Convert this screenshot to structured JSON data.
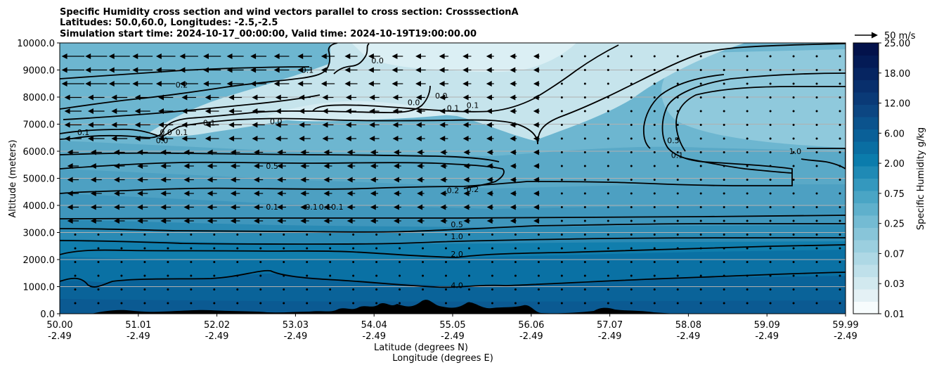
{
  "chart_data": {
    "type": "contour",
    "title_lines": [
      "Specific Humidity cross section and wind vectors parallel to cross section: CrosssectionA",
      "Latitudes: 50.0,60.0, Longitudes: -2.5,-2.5",
      "Simulation start time: 2024-10-17_00:00:00, Valid time: 2024-10-19T19:00:00.00"
    ],
    "ylabel": "Altitude (meters)",
    "xlabel_lines": [
      "Latitude (degrees N)",
      "Longitude (degrees E)"
    ],
    "ylim": [
      0,
      10000
    ],
    "yticks": [
      "0.0",
      "1000.0",
      "2000.0",
      "3000.0",
      "4000.0",
      "5000.0",
      "6000.0",
      "7000.0",
      "8000.0",
      "9000.0",
      "10000.0"
    ],
    "xticks": [
      {
        "lat": "50.00",
        "lon": "-2.49"
      },
      {
        "lat": "51.01",
        "lon": "-2.49"
      },
      {
        "lat": "52.02",
        "lon": "-2.49"
      },
      {
        "lat": "53.03",
        "lon": "-2.49"
      },
      {
        "lat": "54.04",
        "lon": "-2.49"
      },
      {
        "lat": "55.05",
        "lon": "-2.49"
      },
      {
        "lat": "56.06",
        "lon": "-2.49"
      },
      {
        "lat": "57.07",
        "lon": "-2.49"
      },
      {
        "lat": "58.08",
        "lon": "-2.49"
      },
      {
        "lat": "59.09",
        "lon": "-2.49"
      },
      {
        "lat": "59.99",
        "lon": "-2.49"
      }
    ],
    "grid": "horizontal",
    "colorbar": {
      "label": "Specific Humidity g/kg",
      "tick_labels": [
        "0.01",
        "0.03",
        "0.07",
        "0.25",
        "0.75",
        "2.00",
        "6.00",
        "12.00",
        "18.00",
        "25.00"
      ],
      "colors": [
        "#f7fcfd",
        "#e4f1f5",
        "#d2e9ef",
        "#bfe0ea",
        "#aed8e5",
        "#9bcfdf",
        "#88c5d9",
        "#74bbd3",
        "#5fb0cc",
        "#4aa5c5",
        "#3498be",
        "#1f8ab5",
        "#0b7cac",
        "#0a6ea2",
        "#0a6098",
        "#0b538d",
        "#0c4682",
        "#0a3a77",
        "#082f6c",
        "#062561",
        "#041b56",
        "#03124b"
      ]
    },
    "quiver_key": "50 m/s",
    "contour_labels": [
      {
        "text": "0.0",
        "lat": 54.04,
        "alt": 9250
      },
      {
        "text": "0.1",
        "lat": 53.15,
        "alt": 8900
      },
      {
        "text": "0.2",
        "lat": 51.55,
        "alt": 8350
      },
      {
        "text": "0.0",
        "lat": 54.85,
        "alt": 7950
      },
      {
        "text": "0.0",
        "lat": 54.5,
        "alt": 7700
      },
      {
        "text": "0.1",
        "lat": 55.0,
        "alt": 7500
      },
      {
        "text": "0.1",
        "lat": 55.25,
        "alt": 7600
      },
      {
        "text": "0.0",
        "lat": 52.75,
        "alt": 7000
      },
      {
        "text": "0.1",
        "lat": 51.9,
        "alt": 6950
      },
      {
        "text": "0.1",
        "lat": 51.55,
        "alt": 6600
      },
      {
        "text": "0.0",
        "lat": 51.35,
        "alt": 6600
      },
      {
        "text": "0.0",
        "lat": 51.3,
        "alt": 6300
      },
      {
        "text": "0.1",
        "lat": 50.3,
        "alt": 6600
      },
      {
        "text": "0.5",
        "lat": 52.7,
        "alt": 5350
      },
      {
        "text": "0.5",
        "lat": 57.8,
        "alt": 6300
      },
      {
        "text": "0.1",
        "lat": 57.85,
        "alt": 5750
      },
      {
        "text": "1.0",
        "lat": 59.35,
        "alt": 5900
      },
      {
        "text": "0.2",
        "lat": 55.0,
        "alt": 4450
      },
      {
        "text": "0.2",
        "lat": 55.25,
        "alt": 4500
      },
      {
        "text": "0.1",
        "lat": 52.7,
        "alt": 3850
      },
      {
        "text": "0.1",
        "lat": 53.2,
        "alt": 3850
      },
      {
        "text": "0.10.1",
        "lat": 53.45,
        "alt": 3850
      },
      {
        "text": "0.5",
        "lat": 55.05,
        "alt": 3200
      },
      {
        "text": "1.0",
        "lat": 55.05,
        "alt": 2750
      },
      {
        "text": "2.0",
        "lat": 55.05,
        "alt": 2100
      },
      {
        "text": "4.0",
        "lat": 55.05,
        "alt": 950
      }
    ]
  }
}
